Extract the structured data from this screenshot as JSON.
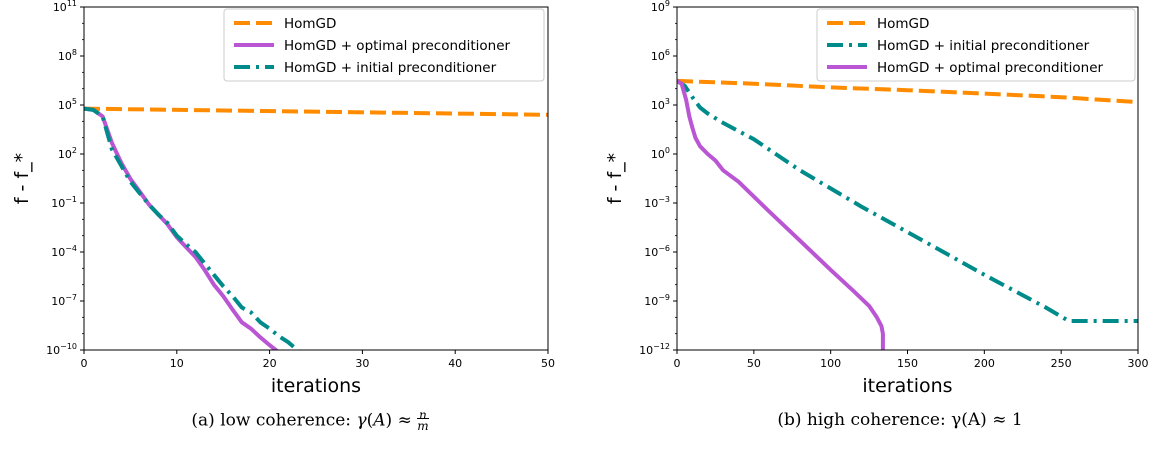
{
  "chart_data": [
    {
      "type": "line",
      "xlabel": "iterations",
      "ylabel": "f - f_*",
      "yscale": "log",
      "xlim": [
        0,
        50
      ],
      "ylim_exp": [
        -10,
        11
      ],
      "xticks": [
        0,
        10,
        20,
        30,
        40,
        50
      ],
      "xtick_labels": [
        "0",
        "10",
        "20",
        "30",
        "40",
        "50"
      ],
      "ytick_exps": [
        -10,
        -7,
        -4,
        -1,
        2,
        5,
        8,
        11
      ],
      "legend_position": "top-right",
      "series": [
        {
          "name": "HomGD",
          "color": "#ff8c00",
          "dash": "dashed",
          "x": [
            0,
            50
          ],
          "y": [
            60000,
            25000
          ]
        },
        {
          "name": "HomGD + optimal preconditioner",
          "color": "#ba55d3",
          "dash": "solid",
          "x": [
            0,
            1,
            2,
            3,
            4,
            5,
            6,
            7,
            8,
            9,
            10,
            11,
            12,
            13,
            14,
            15,
            16,
            17,
            18,
            19,
            20,
            21,
            22
          ],
          "y": [
            60000,
            50000,
            20000,
            500,
            30,
            3,
            0.5,
            0.08,
            0.02,
            0.005,
            0.0008,
            0.0002,
            5e-05,
            8e-06,
            1e-06,
            2e-07,
            3e-08,
            5e-09,
            2e-09,
            6e-10,
            2e-10,
            7e-11,
            2e-11
          ]
        },
        {
          "name": "HomGD + initial preconditioner",
          "color": "#008b8b",
          "dash": "dashdot",
          "x": [
            0,
            1,
            2,
            3,
            4,
            5,
            6,
            7,
            8,
            9,
            10,
            11,
            12,
            13,
            14,
            15,
            16,
            17,
            18,
            19,
            20,
            21,
            22,
            23,
            24
          ],
          "y": [
            60000,
            50000,
            20000,
            200,
            20,
            2,
            0.4,
            0.08,
            0.02,
            0.006,
            0.001,
            0.0003,
            0.0001,
            2e-05,
            4e-06,
            8e-07,
            2e-07,
            4e-08,
            2e-08,
            5e-09,
            2e-09,
            7e-10,
            3e-10,
            1e-10,
            3e-11
          ]
        }
      ]
    },
    {
      "type": "line",
      "xlabel": "iterations",
      "ylabel": "f - f_*",
      "yscale": "log",
      "xlim": [
        0,
        300
      ],
      "ylim_exp": [
        -12,
        9
      ],
      "xticks": [
        0,
        50,
        100,
        150,
        200,
        250,
        300
      ],
      "xtick_labels": [
        "0",
        "50",
        "100",
        "150",
        "200",
        "250",
        "300"
      ],
      "ytick_exps": [
        -12,
        -9,
        -6,
        -3,
        0,
        3,
        6,
        9
      ],
      "legend_position": "top-right",
      "series": [
        {
          "name": "HomGD",
          "color": "#ff8c00",
          "dash": "dashed",
          "x": [
            0,
            50,
            100,
            150,
            200,
            250,
            300
          ],
          "y": [
            30000,
            20000,
            12000,
            8000,
            5000,
            3000,
            1500
          ]
        },
        {
          "name": "HomGD + initial preconditioner",
          "color": "#008b8b",
          "dash": "dashdot",
          "x": [
            0,
            5,
            10,
            15,
            20,
            30,
            50,
            80,
            120,
            160,
            200,
            240,
            255,
            260,
            300
          ],
          "y": [
            30000,
            15000,
            3000,
            700,
            300,
            80,
            8,
            0.1,
            0.0006,
            5e-06,
            4e-08,
            4e-10,
            6e-11,
            6e-11,
            6e-11
          ]
        },
        {
          "name": "HomGD + optimal preconditioner",
          "color": "#ba55d3",
          "dash": "solid",
          "x": [
            0,
            3,
            6,
            8,
            10,
            12,
            15,
            20,
            25,
            30,
            40,
            60,
            80,
            100,
            115,
            125,
            130,
            133,
            134,
            134,
            135
          ],
          "y": [
            30000,
            20000,
            2000,
            200,
            40,
            10,
            3,
            1,
            0.4,
            0.1,
            0.02,
            0.0003,
            5e-06,
            8e-08,
            4e-09,
            5e-10,
            1e-10,
            3e-11,
            1e-11,
            1e-12,
            1e-12
          ]
        }
      ]
    }
  ],
  "captions": {
    "left": "(a) low coherence: γ(A) ≈ n/m",
    "right": "(b) high coherence: γ(A) ≈ 1"
  }
}
